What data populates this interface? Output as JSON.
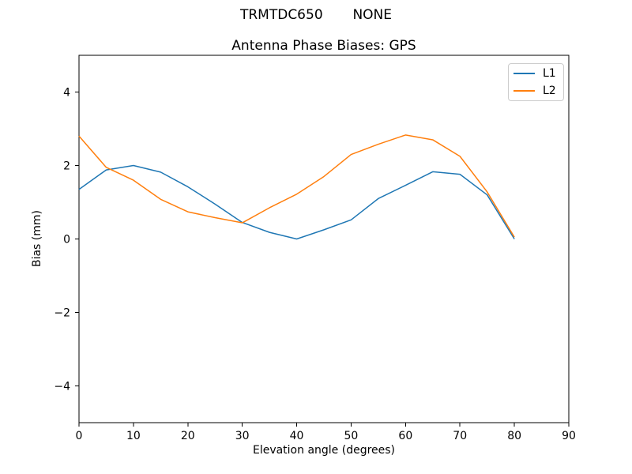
{
  "figure": {
    "suptitle": "TRMTDC650       NONE",
    "background": "#ffffff"
  },
  "chart_data": {
    "type": "line",
    "title": "Antenna Phase Biases: GPS",
    "xlabel": "Elevation angle (degrees)",
    "ylabel": "Bias (mm)",
    "xlim": [
      0,
      90
    ],
    "ylim": [
      -5,
      5
    ],
    "xticks": [
      0,
      10,
      20,
      30,
      40,
      50,
      60,
      70,
      80,
      90
    ],
    "yticks": [
      -4,
      -2,
      0,
      2,
      4
    ],
    "grid": false,
    "legend": {
      "position": "upper right",
      "entries": [
        "L1",
        "L2"
      ]
    },
    "x": [
      0,
      5,
      10,
      15,
      20,
      25,
      30,
      35,
      40,
      45,
      50,
      55,
      60,
      65,
      70,
      75,
      80
    ],
    "series": [
      {
        "name": "L1",
        "color": "#1f77b4",
        "values": [
          1.35,
          1.88,
          2.0,
          1.82,
          1.42,
          0.95,
          0.45,
          0.18,
          0.0,
          0.25,
          0.52,
          1.1,
          1.46,
          1.83,
          1.76,
          1.2,
          0.0
        ]
      },
      {
        "name": "L2",
        "color": "#ff7f0e",
        "values": [
          2.8,
          1.95,
          1.6,
          1.08,
          0.74,
          0.58,
          0.44,
          0.85,
          1.22,
          1.7,
          2.3,
          2.58,
          2.83,
          2.7,
          2.25,
          1.28,
          0.05
        ]
      }
    ]
  }
}
